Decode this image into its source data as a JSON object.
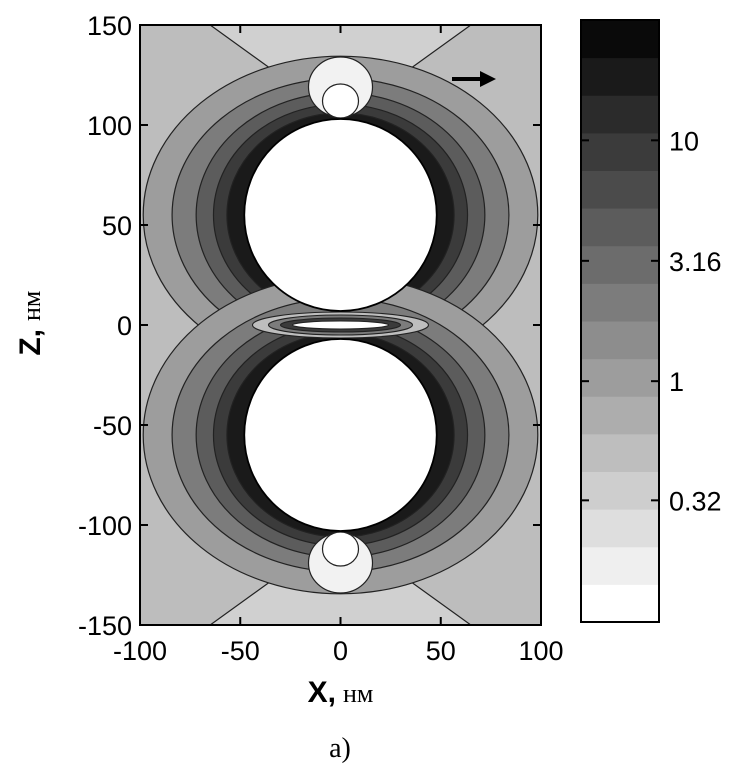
{
  "chart_data": {
    "type": "heatmap",
    "title": "",
    "x_axis": {
      "name": "X,",
      "unit": "нм",
      "range": [
        -100,
        100
      ],
      "ticks": [
        -100,
        -50,
        0,
        50,
        100
      ],
      "tick_labels": [
        "-100",
        "-50",
        "0",
        "50",
        "100"
      ]
    },
    "y_axis": {
      "name": "Z,",
      "unit": "нм",
      "range": [
        -150,
        150
      ],
      "ticks": [
        -150,
        -100,
        -50,
        0,
        50,
        100,
        150
      ],
      "tick_labels": [
        "-150",
        "-100",
        "-50",
        "0",
        "50",
        "100",
        "150"
      ]
    },
    "spheres": [
      {
        "center_x": 0,
        "center_z": 55,
        "radius": 48
      },
      {
        "center_x": 0,
        "center_z": -55,
        "radius": 48
      }
    ],
    "colorbar": {
      "scale": "log",
      "range": [
        0.1,
        31.6
      ],
      "levels": 16,
      "tick_values": [
        0.32,
        1,
        3.16,
        10
      ],
      "tick_labels": [
        "0.32",
        "1",
        "3.16",
        "10"
      ]
    },
    "annotation": {
      "type": "arrow",
      "direction": "right",
      "meaning": "polarization"
    },
    "grid": false
  },
  "caption": "a)",
  "colors": {
    "background_field": "#bdbdbd",
    "darkest": "#0a0a0a",
    "lightest": "#ffffff",
    "contour_line": "#222222"
  }
}
